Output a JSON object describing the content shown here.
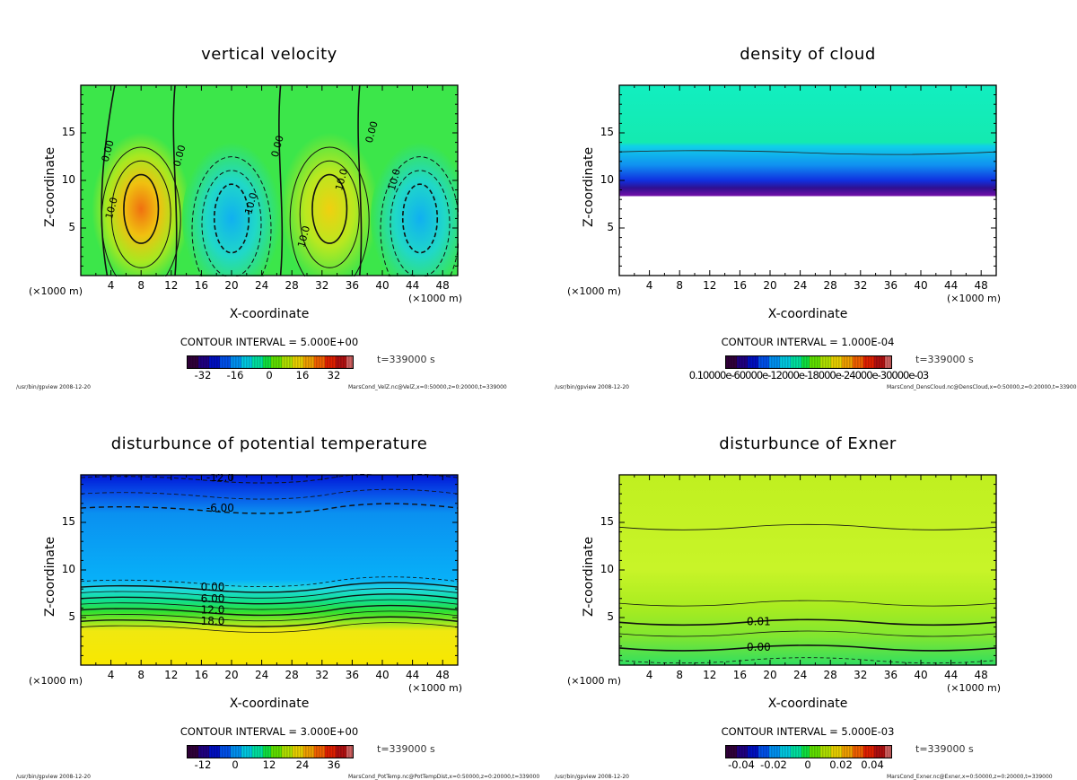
{
  "chart_data": [
    {
      "type": "heatmap",
      "title": "vertical velocity",
      "xlabel": "X-coordinate",
      "ylabel": "Z-coordinate",
      "x_unit": "(×1000 m)",
      "xlim": [
        0,
        50
      ],
      "ylim": [
        0,
        20
      ],
      "xticks": [
        4,
        8,
        12,
        16,
        20,
        24,
        28,
        32,
        36,
        40,
        44,
        48
      ],
      "yticks": [
        5,
        10,
        15
      ],
      "contour_interval": "CONTOUR INTERVAL = 5.000E+00",
      "colorbar_ticks": [
        "-32",
        "-16",
        "0",
        "16",
        "32"
      ],
      "time": "t=339000 s",
      "footer_left": "/usr/bin/gpview  2008-12-20",
      "footer_right": "MarsCond_VelZ.nc@VelZ,x=0:50000,z=0:20000,t=339000",
      "contour_labels": [
        "0.00",
        "0.00",
        "0.00",
        "0.00",
        "10.0",
        "10.0",
        "10.0",
        "10.0",
        "10.0"
      ],
      "features": [
        {
          "x": 8,
          "z": 7,
          "value": 30,
          "kind": "updraft"
        },
        {
          "x": 20,
          "z": 6,
          "value": -15,
          "kind": "downdraft"
        },
        {
          "x": 33,
          "z": 7,
          "value": 18,
          "kind": "updraft"
        },
        {
          "x": 45,
          "z": 6,
          "value": -14,
          "kind": "downdraft"
        }
      ]
    },
    {
      "type": "heatmap",
      "title": "density of cloud",
      "xlabel": "X-coordinate",
      "ylabel": "Z-coordinate",
      "x_unit": "(×1000 m)",
      "xlim": [
        0,
        50
      ],
      "ylim": [
        0,
        20
      ],
      "xticks": [
        4,
        8,
        12,
        16,
        20,
        24,
        28,
        32,
        36,
        40,
        44,
        48
      ],
      "yticks": [
        5,
        10,
        15
      ],
      "contour_interval": "CONTOUR INTERVAL = 1.000E-04",
      "colorbar_ticks": [
        "0.10000e-60000e-12000e-18000e-24000e-30000e-03"
      ],
      "time": "t=339000 s",
      "footer_left": "/usr/bin/gpview  2008-12-20",
      "footer_right": "MarsCond_DensCloud.nc@DensCloud,x=0:50000,z=0:20000,t=339000",
      "cloud_base_z": 8.5,
      "cloud_top_z": 13
    },
    {
      "type": "heatmap",
      "title": "disturbunce of potential temperature",
      "xlabel": "X-coordinate",
      "ylabel": "Z-coordinate",
      "x_unit": "(×1000 m)",
      "xlim": [
        0,
        50
      ],
      "ylim": [
        0,
        20
      ],
      "xticks": [
        4,
        8,
        12,
        16,
        20,
        24,
        28,
        32,
        36,
        40,
        44,
        48
      ],
      "yticks": [
        5,
        10,
        15
      ],
      "contour_interval": "CONTOUR INTERVAL = 3.000E+00",
      "colorbar_ticks": [
        "-12",
        "0",
        "12",
        "24",
        "36"
      ],
      "time": "t=339000 s",
      "footer_left": "/usr/bin/gpview  2008-12-20",
      "footer_right": "MarsCond_PotTemp.nc@PotTempDist,x=0:50000,z=0:20000,t=339000",
      "contour_labels": [
        "-12.0",
        "-6.00",
        "0.00",
        "6.00",
        "12.0",
        "18.0"
      ]
    },
    {
      "type": "heatmap",
      "title": "disturbunce of Exner",
      "xlabel": "X-coordinate",
      "ylabel": "Z-coordinate",
      "x_unit": "(×1000 m)",
      "xlim": [
        0,
        50
      ],
      "ylim": [
        0,
        20
      ],
      "xticks": [
        4,
        8,
        12,
        16,
        20,
        24,
        28,
        32,
        36,
        40,
        44,
        48
      ],
      "yticks": [
        5,
        10,
        15
      ],
      "contour_interval": "CONTOUR INTERVAL = 5.000E-03",
      "colorbar_ticks": [
        "-0.04",
        "-0.02",
        "0",
        "0.02",
        "0.04"
      ],
      "time": "t=339000 s",
      "footer_left": "/usr/bin/gpview  2008-12-20",
      "footer_right": "MarsCond_Exner.nc@Exner,x=0:50000,z=0:20000,t=339000",
      "contour_labels": [
        "0.01",
        "0.00"
      ]
    }
  ]
}
